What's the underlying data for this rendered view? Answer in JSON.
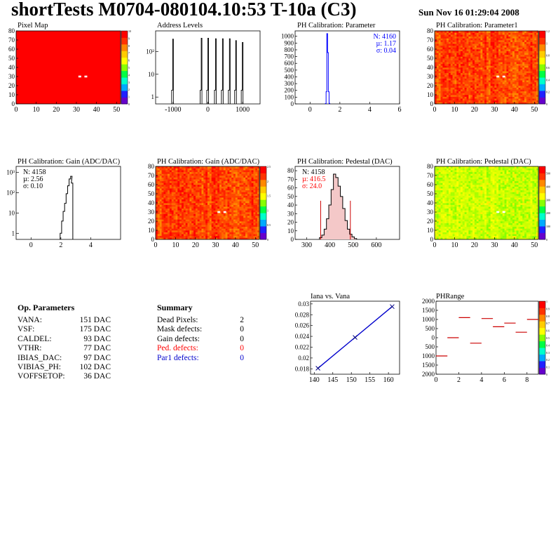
{
  "header": {
    "title": "shortTests M0704-080104.10:53 T-10a (C3)",
    "date": "Sun Nov 16 01:29:04 2008"
  },
  "op_parameters": {
    "title": "Op. Parameters",
    "rows": [
      {
        "name": "VANA:",
        "value": "151 DAC"
      },
      {
        "name": "VSF:",
        "value": "175 DAC"
      },
      {
        "name": "CALDEL:",
        "value": "93 DAC"
      },
      {
        "name": "VTHR:",
        "value": "77 DAC"
      },
      {
        "name": "IBIAS_DAC:",
        "value": "97 DAC"
      },
      {
        "name": "VIBIAS_PH:",
        "value": "102 DAC"
      },
      {
        "name": "VOFFSETOP:",
        "value": "36 DAC"
      }
    ]
  },
  "summary": {
    "title": "Summary",
    "rows": [
      {
        "name": "Dead Pixels:",
        "value": "2",
        "color": "#000000"
      },
      {
        "name": "Mask defects:",
        "value": "0",
        "color": "#000000"
      },
      {
        "name": "Gain defects:",
        "value": "0",
        "color": "#000000"
      },
      {
        "name": "Ped. defects:",
        "value": "0",
        "color": "#ff0000"
      },
      {
        "name": "Par1 defects:",
        "value": "0",
        "color": "#0000cc"
      }
    ]
  },
  "chart_data": [
    {
      "id": "pixelmap",
      "type": "heatmap",
      "title": "Pixel Map",
      "xlim": [
        0,
        52
      ],
      "ylim": [
        0,
        80
      ],
      "xticks": [
        0,
        10,
        20,
        30,
        40,
        50
      ],
      "yticks": [
        0,
        10,
        20,
        30,
        40,
        50,
        60,
        70,
        80
      ],
      "zlim": [
        0,
        10
      ],
      "zticks": [
        0,
        1,
        2,
        3,
        4,
        5,
        6,
        7,
        8,
        9,
        10
      ],
      "fill_value": 10,
      "pattern": "uniform",
      "dead_pixels": [
        [
          31,
          30
        ],
        [
          34,
          30
        ]
      ]
    },
    {
      "id": "addresslevels",
      "type": "bar",
      "title": "Address Levels",
      "logy": true,
      "xlim": [
        -1500,
        1500
      ],
      "ylim": [
        0.5,
        800
      ],
      "xticks": [
        -1000,
        0,
        1000
      ],
      "ytick_labels": [
        "1",
        "10",
        "10²"
      ],
      "peaks": [
        {
          "x": -1000,
          "y": 350
        },
        {
          "x": -180,
          "y": 380
        },
        {
          "x": 10,
          "y": 380
        },
        {
          "x": 230,
          "y": 360
        },
        {
          "x": 430,
          "y": 360
        },
        {
          "x": 630,
          "y": 360
        },
        {
          "x": 810,
          "y": 300
        },
        {
          "x": 1000,
          "y": 250
        }
      ]
    },
    {
      "id": "phpar",
      "type": "bar",
      "title": "PH Calibration: Parameter",
      "xlim": [
        -1,
        6
      ],
      "ylim": [
        0,
        1080
      ],
      "xticks": [
        0,
        2,
        4,
        6
      ],
      "yticks": [
        0,
        100,
        200,
        300,
        400,
        500,
        600,
        700,
        800,
        900,
        1000
      ],
      "line_color": "#0000ff",
      "x": [
        1.05,
        1.1,
        1.15,
        1.2,
        1.25,
        1.3
      ],
      "values": [
        5,
        180,
        1040,
        760,
        180,
        8
      ],
      "stats": [
        {
          "text": "N: 4160",
          "color": "#0000ff"
        },
        {
          "text": "µ: 1.17",
          "color": "#0000ff"
        },
        {
          "text": "σ: 0.04",
          "color": "#0000ff"
        }
      ]
    },
    {
      "id": "phpar1",
      "type": "heatmap",
      "title": "PH Calibration: Parameter1",
      "xlim": [
        0,
        52
      ],
      "ylim": [
        0,
        80
      ],
      "xticks": [
        0,
        10,
        20,
        30,
        40,
        50
      ],
      "yticks": [
        0,
        10,
        20,
        30,
        40,
        50,
        60,
        70,
        80
      ],
      "zlim": [
        0,
        1.2
      ],
      "zticks": [
        0,
        0.2,
        0.4,
        0.6,
        0.8,
        1,
        1.2
      ],
      "pattern": "red-orange",
      "dead_pixels": [
        [
          31,
          30
        ],
        [
          34,
          30
        ]
      ]
    },
    {
      "id": "gain",
      "type": "bar",
      "title": "PH Calibration: Gain (ADC/DAC)",
      "logy": true,
      "xlim": [
        -1,
        6
      ],
      "ylim": [
        0.5,
        2000
      ],
      "xticks": [
        0,
        2,
        4
      ],
      "ytick_labels": [
        "1",
        "10",
        "10²",
        "10³"
      ],
      "x": [
        2.0,
        2.1,
        2.2,
        2.3,
        2.4,
        2.5,
        2.6,
        2.7,
        2.75
      ],
      "values": [
        1,
        4,
        12,
        30,
        90,
        220,
        480,
        650,
        300
      ],
      "stats": [
        {
          "text": "N: 4158",
          "color": "#000000"
        },
        {
          "text": "µ: 2.56",
          "color": "#000000"
        },
        {
          "text": "σ: 0.10",
          "color": "#000000"
        }
      ]
    },
    {
      "id": "gainmap",
      "type": "heatmap",
      "title": "PH Calibration: Gain (ADC/DAC)",
      "xlim": [
        0,
        52
      ],
      "ylim": [
        0,
        80
      ],
      "xticks": [
        0,
        10,
        20,
        30,
        40,
        50
      ],
      "yticks": [
        0,
        10,
        20,
        30,
        40,
        50,
        60,
        70,
        80
      ],
      "zlim": [
        0,
        2.5
      ],
      "zticks": [
        0,
        0.5,
        1,
        1.5,
        2,
        2.5
      ],
      "pattern": "red-orange",
      "dead_pixels": [
        [
          31,
          30
        ],
        [
          34,
          30
        ]
      ]
    },
    {
      "id": "pedestal",
      "type": "bar",
      "title": "PH Calibration: Pedestal (DAC)",
      "xlim": [
        250,
        700
      ],
      "ylim": [
        0,
        85
      ],
      "xticks": [
        300,
        400,
        500,
        600
      ],
      "yticks": [
        0,
        10,
        20,
        30,
        40,
        50,
        60,
        70,
        80
      ],
      "x": [
        360,
        370,
        380,
        390,
        400,
        410,
        420,
        430,
        440,
        450,
        460,
        470,
        480,
        490,
        500,
        510
      ],
      "values": [
        2,
        5,
        12,
        24,
        40,
        58,
        76,
        72,
        62,
        50,
        36,
        22,
        12,
        6,
        3,
        1
      ],
      "cut_lines": [
        360,
        488
      ],
      "cut_height": 45,
      "stats": [
        {
          "text": "N: 4158",
          "color": "#000000"
        },
        {
          "text": "µ: 416.5",
          "color": "#ff0000"
        },
        {
          "text": "σ: 24.0",
          "color": "#ff0000"
        }
      ]
    },
    {
      "id": "pedmap",
      "type": "heatmap",
      "title": "PH Calibration: Pedestal (DAC)",
      "xlim": [
        0,
        52
      ],
      "ylim": [
        0,
        80
      ],
      "xticks": [
        0,
        10,
        20,
        30,
        40,
        50
      ],
      "yticks": [
        0,
        10,
        20,
        30,
        40,
        50,
        60,
        70,
        80
      ],
      "zlim": [
        0,
        550
      ],
      "zticks": [
        0,
        100,
        200,
        300,
        400,
        500
      ],
      "pattern": "yellow-green",
      "dead_pixels": [
        [
          31,
          30
        ],
        [
          34,
          30
        ]
      ]
    },
    {
      "id": "ianavana",
      "type": "line",
      "title": "Iana vs. Vana",
      "xlim": [
        139,
        163
      ],
      "ylim": [
        0.017,
        0.0305
      ],
      "xticks": [
        140,
        145,
        150,
        155,
        160
      ],
      "yticks": [
        0.018,
        0.02,
        0.022,
        0.024,
        0.026,
        0.028,
        0.03
      ],
      "ytick_labels": [
        "0.018",
        "0.02",
        "0.022",
        "0.024",
        "0.026",
        "0.028",
        "0.03"
      ],
      "x": [
        141,
        151,
        161
      ],
      "values": [
        0.0181,
        0.0238,
        0.0295
      ]
    },
    {
      "id": "phrange",
      "type": "scatter",
      "title": "PHRange",
      "xlim": [
        0,
        9
      ],
      "ylim": [
        -2000,
        2000
      ],
      "xticks": [
        0,
        2,
        4,
        6,
        8
      ],
      "yticks": [
        -2000,
        -1500,
        -1000,
        -500,
        0,
        500,
        1000,
        1500,
        2000
      ],
      "ytick_labels": [
        "2000",
        "1500",
        "1000",
        "500",
        "0",
        "500",
        "1000",
        "1500",
        "2000"
      ],
      "zlim": [
        0,
        1
      ],
      "zticks": [
        0,
        0.1,
        0.2,
        0.3,
        0.4,
        0.5,
        0.6,
        0.7,
        0.8,
        0.9,
        1
      ],
      "x": [
        0.5,
        1.5,
        2.5,
        3.5,
        4.5,
        5.5,
        6.5,
        7.5,
        8.5
      ],
      "values": [
        -1000,
        0,
        1100,
        -300,
        1050,
        600,
        800,
        300,
        1000
      ]
    }
  ]
}
